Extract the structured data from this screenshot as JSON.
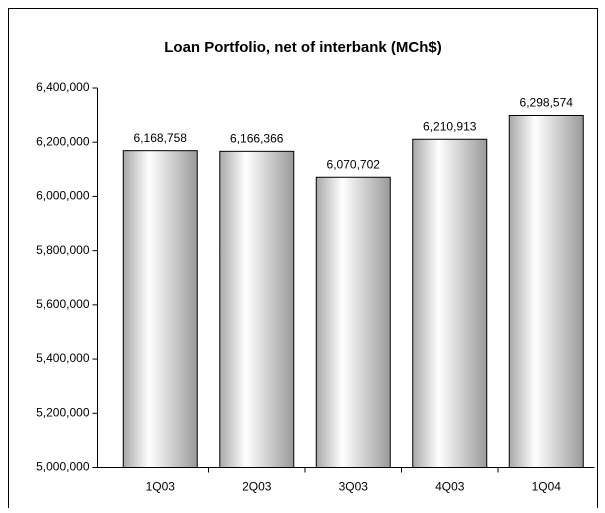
{
  "chart_data": {
    "type": "bar",
    "title": "Loan Portfolio, net of interbank (MCh$)",
    "categories": [
      "1Q03",
      "2Q03",
      "3Q03",
      "4Q03",
      "1Q04"
    ],
    "values": [
      6168758,
      6166366,
      6070702,
      6210913,
      6298574
    ],
    "value_labels": [
      "6,168,758",
      "6,166,366",
      "6,070,702",
      "6,210,913",
      "6,298,574"
    ],
    "ylim": [
      5000000,
      6400000
    ],
    "yticks": [
      {
        "value": 5000000,
        "label": "5,000,000"
      },
      {
        "value": 5200000,
        "label": "5,200,000"
      },
      {
        "value": 5400000,
        "label": "5,400,000"
      },
      {
        "value": 5600000,
        "label": "5,600,000"
      },
      {
        "value": 5800000,
        "label": "5,800,000"
      },
      {
        "value": 6000000,
        "label": "6,000,000"
      },
      {
        "value": 6200000,
        "label": "6,200,000"
      },
      {
        "value": 6400000,
        "label": "6,400,000"
      }
    ],
    "grid": false
  }
}
